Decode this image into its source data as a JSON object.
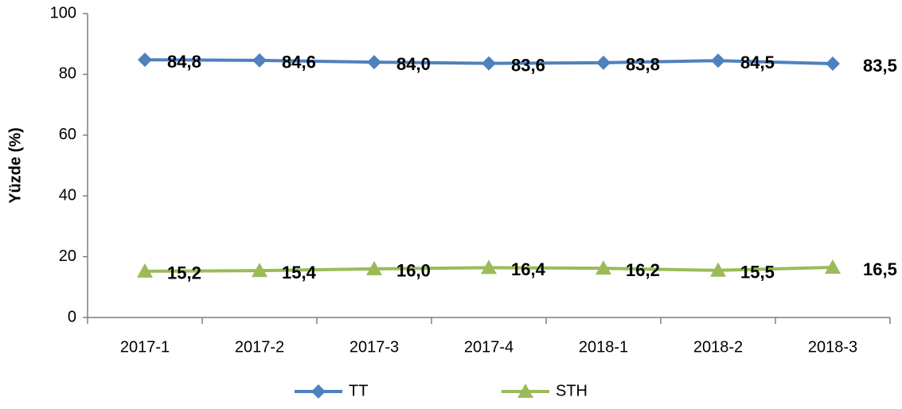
{
  "chart_data": {
    "type": "line",
    "y_label": "Yüzde (%)",
    "categories": [
      "2017-1",
      "2017-2",
      "2017-3",
      "2017-4",
      "2018-1",
      "2018-2",
      "2018-3"
    ],
    "series": [
      {
        "name": "TT",
        "color": "#4f81bd",
        "marker": "diamond",
        "values": [
          84.8,
          84.6,
          84.0,
          83.6,
          83.8,
          84.5,
          83.5
        ],
        "value_labels": [
          "84,8",
          "84,6",
          "84,0",
          "83,6",
          "83,8",
          "84,5",
          "83,5"
        ]
      },
      {
        "name": "STH",
        "color": "#9bbb59",
        "marker": "triangle",
        "values": [
          15.2,
          15.4,
          16.0,
          16.4,
          16.2,
          15.5,
          16.5
        ],
        "value_labels": [
          "15,2",
          "15,4",
          "16,0",
          "16,4",
          "16,2",
          "15,5",
          "16,5"
        ]
      }
    ],
    "ylim": [
      0,
      100
    ],
    "yticks": [
      0,
      20,
      40,
      60,
      80,
      100
    ],
    "grid": false,
    "legend": "bottom"
  }
}
